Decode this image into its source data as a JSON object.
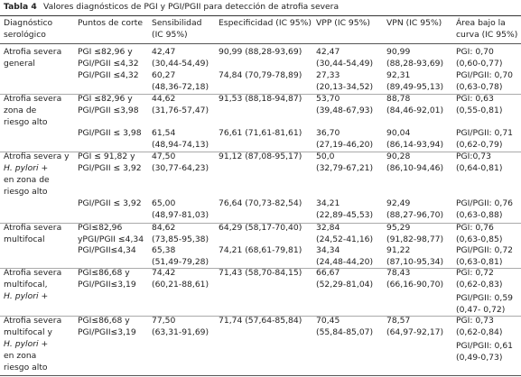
{
  "header": {
    "number": "Tabla 4",
    "title": "Valores diagnósticos de PGI y PGI/PGII para detección de atrofia severa"
  },
  "table": {
    "columns": [
      [
        "Diagnóstico",
        "serológico"
      ],
      [
        "Puntos de corte"
      ],
      [
        "Sensibilidad",
        "(IC 95%)"
      ],
      [
        "Especificidad (IC 95%)"
      ],
      [
        "VPP (IC 95%)"
      ],
      [
        "VPN (IC 95%)"
      ],
      [
        "Área bajo la",
        "curva (IC 95%)"
      ]
    ],
    "groups": [
      {
        "label": [
          "Atrofia severa",
          "general"
        ],
        "rows": [
          [
            [
              "PGI ≤82,96 y",
              "PGI/PGII ≤4,32"
            ],
            [
              "42,47",
              "(30,44-54,49)"
            ],
            [
              "90,99 (88,28-93,69)"
            ],
            [
              "42,47",
              "(30,44-54,49)"
            ],
            [
              "90,99",
              "(88,28-93,69)"
            ],
            [
              "PGI: 0,70",
              "(0,60-0,77)"
            ]
          ],
          [
            [
              "PGI/PGII ≤4,32"
            ],
            [
              "60,27",
              "(48,36-72,18)"
            ],
            [
              "74,84 (70,79-78,89)"
            ],
            [
              "27,33",
              "(20,13-34,52)"
            ],
            [
              "92,31",
              "(89,49-95,13)"
            ],
            [
              "PGI/PGII: 0,70",
              "(0,63-0,78)"
            ]
          ]
        ]
      },
      {
        "label": [
          "Atrofia severa",
          "zona de",
          "riesgo alto"
        ],
        "rows": [
          [
            [
              "PGI ≤82,96 y",
              "PGI/PGII ≤3,98"
            ],
            [
              "44,62",
              "(31,76-57,47)"
            ],
            [
              "91,53 (88,18-94,87)"
            ],
            [
              "53,70",
              "(39,48-67,93)"
            ],
            [
              "88,78",
              "(84,46-92,01)"
            ],
            [
              "PGI: 0,63",
              "(0,55-0,81)"
            ]
          ],
          [
            [
              "PGI/PGII ≤ 3,98"
            ],
            [
              "61,54",
              "(48,94-74,13)"
            ],
            [
              "76,61 (71,61-81,61)"
            ],
            [
              "36,70",
              "(27,19-46,20)"
            ],
            [
              "90,04",
              "(86,14-93,94)"
            ],
            [
              "PGI/PGII: 0,71",
              "(0,62-0,79)"
            ]
          ]
        ]
      },
      {
        "label": [
          "Atrofia severa y",
          "H. pylori +",
          "en zona de",
          "riesgo alto"
        ],
        "rows": [
          [
            [
              "PGI ≤ 91,82 y",
              "PGI/PGII ≤ 3,92"
            ],
            [
              "47,50",
              "(30,77-64,23)"
            ],
            [
              "91,12 (87,08-95,17)"
            ],
            [
              "50,0",
              "(32,79-67,21)"
            ],
            [
              "90,28",
              "(86,10-94,46)"
            ],
            [
              "PGI:0,73",
              "(0,64-0,81)"
            ]
          ],
          [
            [
              "PGI/PGII ≤ 3,92"
            ],
            [
              "65,00",
              "(48,97-81,03)"
            ],
            [
              "76,64 (70,73-82,54)"
            ],
            [
              "34,21",
              "(22,89-45,53)"
            ],
            [
              "92,49",
              "(88,27-96,70)"
            ],
            [
              "PGI/PGII: 0,76",
              "(0,63-0,88)"
            ]
          ]
        ]
      },
      {
        "label": [
          "Atrofia severa",
          "multifocal"
        ],
        "rows": [
          [
            [
              "PGI≤82,96",
              "yPGI/PGII ≤4,34"
            ],
            [
              "84,62",
              "(73,85-95,38)"
            ],
            [
              "64,29 (58,17-70,40)"
            ],
            [
              "32,84",
              "(24,52-41,16)"
            ],
            [
              "95,29",
              "(91,82-98,77)"
            ],
            [
              "PGI: 0,76",
              "(0,63-0,85)"
            ]
          ],
          [
            [
              "PGI/PGII≤4,34"
            ],
            [
              "65,38",
              "(51,49-79,28)"
            ],
            [
              "74,21 (68,61-79,81)"
            ],
            [
              "34,34",
              "(24,48-44,20)"
            ],
            [
              "91,22",
              "(87,10-95,34)"
            ],
            [
              "PGI/PGII: 0,72",
              "(0,63-0,81)"
            ]
          ]
        ]
      },
      {
        "label": [
          "Atrofia severa",
          "multifocal,",
          "H. pylori +"
        ],
        "rows": [
          [
            [
              "PGI≤86,68 y",
              "PGI/PGII≤3,19"
            ],
            [
              "74,42",
              "(60,21-88,61)"
            ],
            [
              "71,43 (58,70-84,15)"
            ],
            [
              "66,67",
              "(52,29-81,04)"
            ],
            [
              "78,43",
              "(66,16-90,70)"
            ],
            [
              "PGI: 0,72",
              "(0,62-0,83)",
              "PGI/PGII: 0,59",
              "(0,47- 0,72)"
            ]
          ]
        ]
      },
      {
        "label": [
          "Atrofia severa",
          "multifocal y",
          "H. pylori +",
          "en zona",
          "riesgo alto"
        ],
        "rows": [
          [
            [
              "PGI≤86,68 y",
              "PGI/PGII≤3,19"
            ],
            [
              "77,50",
              "(63,31-91,69)"
            ],
            [
              "71,74 (57,64-85,84)"
            ],
            [
              "70,45",
              "(55,84-85,07)"
            ],
            [
              "78,57",
              "(64,97-92,17)"
            ],
            [
              "PGI: 0,73",
              "(0,62-0,84)",
              "PGI/PGII: 0,61",
              "(0,49-0,73)"
            ]
          ]
        ]
      }
    ]
  }
}
